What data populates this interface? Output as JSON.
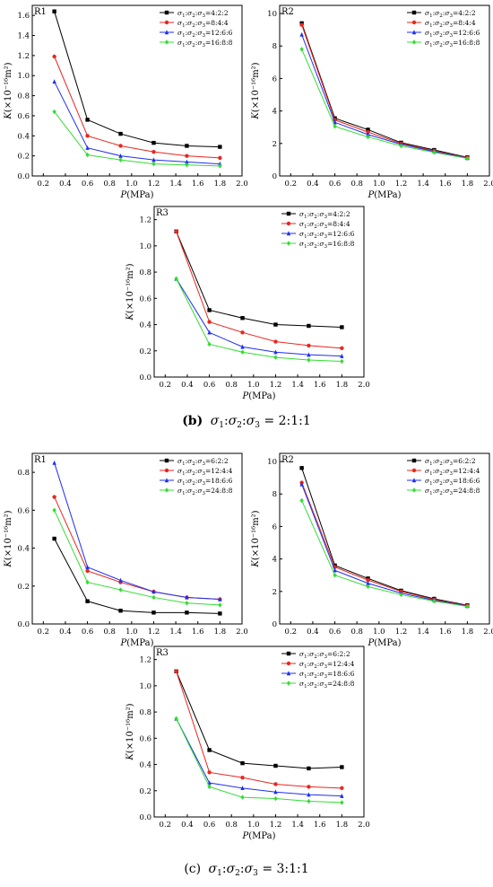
{
  "colors": {
    "black": "#000000",
    "red": "#e8271f",
    "blue": "#1f2ff0",
    "green": "#33dd33"
  },
  "section_labels": [
    {
      "letter": "(b)",
      "ratio": " = 2:1:1"
    },
    {
      "letter": "(c)",
      "ratio": " = 3:1:1"
    }
  ],
  "chart_data": [
    {
      "type": "line",
      "panel": "R1",
      "group": "b",
      "xlabel": "P(MPa)",
      "ylabel": "K(×10⁻¹⁶m²)",
      "xlim": [
        0.1,
        2.0
      ],
      "ylim": [
        0,
        1.7
      ],
      "xticks": [
        "0.2",
        "0.4",
        "0.6",
        "0.8",
        "1.0",
        "1.2",
        "1.4",
        "1.6",
        "1.8",
        "2.0"
      ],
      "yticks": [
        "0.0",
        "0.2",
        "0.4",
        "0.6",
        "0.8",
        "1.0",
        "1.2",
        "1.4",
        "1.6"
      ],
      "x": [
        0.3,
        0.6,
        0.9,
        1.2,
        1.5,
        1.8
      ],
      "series": [
        {
          "name": "σ1:σ2:σ3=4:2:2",
          "values": [
            1.64,
            0.56,
            0.42,
            0.33,
            0.3,
            0.29
          ]
        },
        {
          "name": "σ1:σ2:σ3=8:4:4",
          "values": [
            1.19,
            0.4,
            0.3,
            0.24,
            0.2,
            0.18
          ]
        },
        {
          "name": "σ1:σ2:σ3=12:6:6",
          "values": [
            0.94,
            0.28,
            0.2,
            0.16,
            0.14,
            0.12
          ]
        },
        {
          "name": "σ1:σ2:σ3=16:8:8",
          "values": [
            0.64,
            0.21,
            0.16,
            0.12,
            0.11,
            0.1
          ]
        }
      ]
    },
    {
      "type": "line",
      "panel": "R2",
      "group": "b",
      "xlabel": "P(MPa)",
      "ylabel": "K(×10⁻¹⁶m²)",
      "xlim": [
        0.1,
        2.0
      ],
      "ylim": [
        0,
        10.5
      ],
      "xticks": [
        "0.2",
        "0.4",
        "0.6",
        "0.8",
        "1.0",
        "1.2",
        "1.4",
        "1.6",
        "1.8",
        "2.0"
      ],
      "yticks": [
        "0",
        "2",
        "4",
        "6",
        "8",
        "10"
      ],
      "x": [
        0.3,
        0.6,
        0.9,
        1.2,
        1.5,
        1.8
      ],
      "series": [
        {
          "name": "σ1:σ2:σ3=4:2:2",
          "values": [
            9.4,
            3.55,
            2.85,
            2.05,
            1.6,
            1.15
          ]
        },
        {
          "name": "σ1:σ2:σ3=8:4:4",
          "values": [
            9.3,
            3.45,
            2.7,
            2.0,
            1.55,
            1.12
          ]
        },
        {
          "name": "σ1:σ2:σ3=12:6:6",
          "values": [
            8.7,
            3.3,
            2.55,
            1.95,
            1.5,
            1.1
          ]
        },
        {
          "name": "σ1:σ2:σ3=16:8:8",
          "values": [
            7.8,
            3.05,
            2.4,
            1.85,
            1.45,
            1.08
          ]
        }
      ]
    },
    {
      "type": "line",
      "panel": "R3",
      "group": "b",
      "xlabel": "P(MPa)",
      "ylabel": "K(×10⁻¹⁶m²)",
      "xlim": [
        0.1,
        2.0
      ],
      "ylim": [
        0,
        1.3
      ],
      "xticks": [
        "0.2",
        "0.4",
        "0.6",
        "0.8",
        "1.0",
        "1.2",
        "1.4",
        "1.6",
        "1.8",
        "2.0"
      ],
      "yticks": [
        "0.0",
        "0.2",
        "0.4",
        "0.6",
        "0.8",
        "1.0",
        "1.2"
      ],
      "x": [
        0.3,
        0.6,
        0.9,
        1.2,
        1.5,
        1.8
      ],
      "series": [
        {
          "name": "σ1:σ2:σ3=4:2:2",
          "values": [
            1.11,
            0.51,
            0.45,
            0.4,
            0.39,
            0.38
          ]
        },
        {
          "name": "σ1:σ2:σ3=8:4:4",
          "values": [
            1.11,
            0.42,
            0.34,
            0.27,
            0.24,
            0.22
          ]
        },
        {
          "name": "σ1:σ2:σ3=12:6:6",
          "values": [
            0.75,
            0.34,
            0.23,
            0.19,
            0.17,
            0.16
          ]
        },
        {
          "name": "σ1:σ2:σ3=16:8:8",
          "values": [
            0.75,
            0.25,
            0.19,
            0.15,
            0.13,
            0.12
          ]
        }
      ]
    },
    {
      "type": "line",
      "panel": "R1",
      "group": "c",
      "xlabel": "P(MPa)",
      "ylabel": "K(×10⁻¹⁶m²)",
      "xlim": [
        0.1,
        2.0
      ],
      "ylim": [
        0,
        0.9
      ],
      "xticks": [
        "0.2",
        "0.4",
        "0.6",
        "0.8",
        "1.0",
        "1.2",
        "1.4",
        "1.6",
        "1.8",
        "2.0"
      ],
      "yticks": [
        "0.0",
        "0.2",
        "0.4",
        "0.6",
        "0.8"
      ],
      "x": [
        0.3,
        0.6,
        0.9,
        1.2,
        1.5,
        1.8
      ],
      "series": [
        {
          "name": "σ1:σ2:σ3=6:2:2",
          "values": [
            0.45,
            0.12,
            0.07,
            0.06,
            0.06,
            0.055
          ]
        },
        {
          "name": "σ1:σ2:σ3=12:4:4",
          "values": [
            0.67,
            0.28,
            0.22,
            0.17,
            0.14,
            0.13
          ]
        },
        {
          "name": "σ1:σ2:σ3=18:6:6",
          "values": [
            0.85,
            0.3,
            0.23,
            0.17,
            0.14,
            0.13
          ]
        },
        {
          "name": "σ1:σ2:σ3=24:8:8",
          "values": [
            0.6,
            0.22,
            0.18,
            0.14,
            0.11,
            0.1
          ]
        }
      ]
    },
    {
      "type": "line",
      "panel": "R2",
      "group": "c",
      "xlabel": "P(MPa)",
      "ylabel": "K(×10⁻¹⁶m²)",
      "xlim": [
        0.1,
        2.0
      ],
      "ylim": [
        0,
        10.5
      ],
      "xticks": [
        "0.2",
        "0.4",
        "0.6",
        "0.8",
        "1.0",
        "1.2",
        "1.4",
        "1.6",
        "1.8",
        "2.0"
      ],
      "yticks": [
        "0",
        "2",
        "4",
        "6",
        "8",
        "10"
      ],
      "x": [
        0.3,
        0.6,
        0.9,
        1.2,
        1.5,
        1.8
      ],
      "series": [
        {
          "name": "σ1:σ2:σ3=6:2:2",
          "values": [
            9.6,
            3.6,
            2.8,
            2.05,
            1.55,
            1.15
          ]
        },
        {
          "name": "σ1:σ2:σ3=12:4:4",
          "values": [
            8.7,
            3.5,
            2.7,
            2.0,
            1.5,
            1.12
          ]
        },
        {
          "name": "σ1:σ2:σ3=18:6:6",
          "values": [
            8.6,
            3.3,
            2.5,
            1.9,
            1.45,
            1.1
          ]
        },
        {
          "name": "σ1:σ2:σ3=24:8:8",
          "values": [
            7.6,
            3.0,
            2.3,
            1.8,
            1.4,
            1.08
          ]
        }
      ]
    },
    {
      "type": "line",
      "panel": "R3",
      "group": "c",
      "xlabel": "P(MPa)",
      "ylabel": "K(×10⁻¹⁶m²)",
      "xlim": [
        0.1,
        2.0
      ],
      "ylim": [
        0,
        1.3
      ],
      "xticks": [
        "0.2",
        "0.4",
        "0.6",
        "0.8",
        "1.0",
        "1.2",
        "1.4",
        "1.6",
        "1.8",
        "2.0"
      ],
      "yticks": [
        "0.0",
        "0.2",
        "0.4",
        "0.6",
        "0.8",
        "1.0",
        "1.2"
      ],
      "x": [
        0.3,
        0.6,
        0.9,
        1.2,
        1.5,
        1.8
      ],
      "series": [
        {
          "name": "σ1:σ2:σ3=6:2:2",
          "values": [
            1.11,
            0.51,
            0.41,
            0.39,
            0.37,
            0.38
          ]
        },
        {
          "name": "σ1:σ2:σ3=12:4:4",
          "values": [
            1.11,
            0.34,
            0.3,
            0.25,
            0.23,
            0.22
          ]
        },
        {
          "name": "σ1:σ2:σ3=18:6:6",
          "values": [
            0.75,
            0.26,
            0.22,
            0.19,
            0.17,
            0.16
          ]
        },
        {
          "name": "σ1:σ2:σ3=24:8:8",
          "values": [
            0.75,
            0.23,
            0.15,
            0.14,
            0.12,
            0.11
          ]
        }
      ]
    }
  ]
}
